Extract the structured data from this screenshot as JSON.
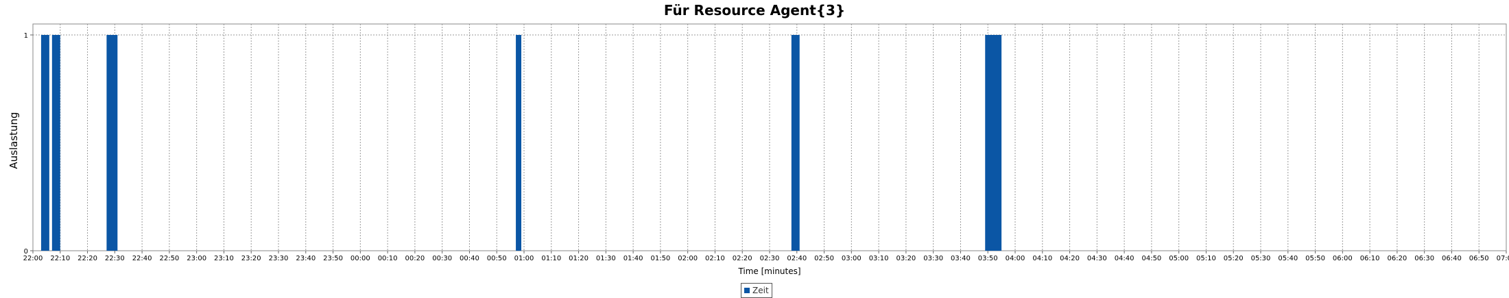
{
  "chart_data": {
    "type": "bar",
    "title": "Für Resource Agent{3}",
    "xlabel": "Time [minutes]",
    "ylabel": "Auslastung",
    "x_ticks": [
      "22:00",
      "22:10",
      "22:20",
      "22:30",
      "22:40",
      "22:50",
      "23:00",
      "23:10",
      "23:20",
      "23:30",
      "23:40",
      "23:50",
      "00:00",
      "00:10",
      "00:20",
      "00:30",
      "00:40",
      "00:50",
      "01:00",
      "01:10",
      "01:20",
      "01:30",
      "01:40",
      "01:50",
      "02:00",
      "02:10",
      "02:20",
      "02:30",
      "02:40",
      "02:50",
      "03:00",
      "03:10",
      "03:20",
      "03:30",
      "03:40",
      "03:50",
      "04:00",
      "04:10",
      "04:20",
      "04:30",
      "04:40",
      "04:50",
      "05:00",
      "05:10",
      "05:20",
      "05:30",
      "05:40",
      "05:50",
      "06:00",
      "06:10",
      "06:20",
      "06:30",
      "06:40",
      "06:50",
      "07:00"
    ],
    "y_ticks": [
      "0",
      "1"
    ],
    "ylim": [
      0,
      1
    ],
    "xlim": [
      "22:00",
      "07:00"
    ],
    "grid": true,
    "legend_position": "bottom-center",
    "series": [
      {
        "name": "Zeit",
        "color": "#0b56a5",
        "bars": [
          {
            "start": "22:03",
            "end": "22:06",
            "value": 1
          },
          {
            "start": "22:07",
            "end": "22:10",
            "value": 1
          },
          {
            "start": "22:27",
            "end": "22:31",
            "value": 1
          },
          {
            "start": "00:57",
            "end": "00:59",
            "value": 1
          },
          {
            "start": "02:38",
            "end": "02:41",
            "value": 1
          },
          {
            "start": "03:49",
            "end": "03:55",
            "value": 1
          }
        ]
      }
    ]
  }
}
